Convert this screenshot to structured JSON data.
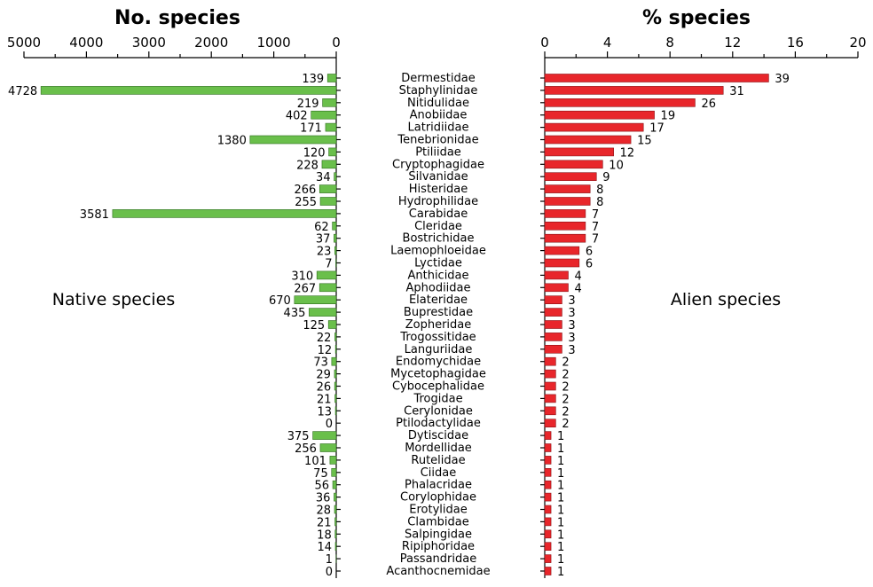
{
  "chart_data": {
    "type": "bar",
    "families": [
      "Dermestidae",
      "Staphylinidae",
      "Nitidulidae",
      "Anobiidae",
      "Latridiidae",
      "Tenebrionidae",
      "Ptiliidae",
      "Cryptophagidae",
      "Silvanidae",
      "Histeridae",
      "Hydrophilidae",
      "Carabidae",
      "Cleridae",
      "Bostrichidae",
      "Laemophloeidae",
      "Lyctidae",
      "Anthicidae",
      "Aphodiidae",
      "Elateridae",
      "Buprestidae",
      "Zopheridae",
      "Trogossitidae",
      "Languriidae",
      "Endomychidae",
      "Mycetophagidae",
      "Cybocephalidae",
      "Trogidae",
      "Cerylonidae",
      "Ptilodactylidae",
      "Dytiscidae",
      "Mordellidae",
      "Rutelidae",
      "Ciidae",
      "Phalacridae",
      "Corylophidae",
      "Erotylidae",
      "Clambidae",
      "Salpingidae",
      "Ripiphoridae",
      "Passandridae",
      "Acanthocnemidae"
    ],
    "native": {
      "title": "No. species",
      "label": "Native species",
      "xlim": [
        5000,
        0
      ],
      "ticks": [
        "5000",
        "4000",
        "3000",
        "2000",
        "1000",
        "0"
      ],
      "color": "#6abf4b",
      "values": [
        139,
        4728,
        219,
        402,
        171,
        1380,
        120,
        228,
        34,
        266,
        255,
        3581,
        62,
        37,
        23,
        7,
        310,
        267,
        670,
        435,
        125,
        22,
        12,
        73,
        29,
        26,
        21,
        13,
        0,
        375,
        256,
        101,
        75,
        56,
        36,
        28,
        21,
        18,
        14,
        1,
        0
      ],
      "labels": [
        "139",
        "4728",
        "219",
        "402",
        "171",
        "1380",
        "120",
        "228",
        "34",
        "266",
        "255",
        "3581",
        "62",
        "37",
        "23",
        "7",
        "310",
        "267",
        "670",
        "435",
        "125",
        "22",
        "12",
        "73",
        "29",
        "26",
        "21",
        "13",
        "0",
        "375",
        "256",
        "101",
        "75",
        "56",
        "36",
        "28",
        "21",
        "18",
        "14",
        "1",
        "0"
      ]
    },
    "alien": {
      "title": "% species",
      "label": "Alien species",
      "xlim": [
        0,
        20
      ],
      "ticks": [
        "0",
        "4",
        "8",
        "12",
        "16",
        "20"
      ],
      "color": "#e8262b",
      "values": [
        14.3,
        11.4,
        9.6,
        7.0,
        6.3,
        5.5,
        4.4,
        3.7,
        3.3,
        2.9,
        2.9,
        2.6,
        2.6,
        2.6,
        2.2,
        2.2,
        1.5,
        1.5,
        1.1,
        1.1,
        1.1,
        1.1,
        1.1,
        0.7,
        0.7,
        0.7,
        0.7,
        0.7,
        0.7,
        0.4,
        0.4,
        0.4,
        0.4,
        0.4,
        0.4,
        0.4,
        0.4,
        0.4,
        0.4,
        0.4,
        0.4
      ],
      "labels": [
        "39",
        "31",
        "26",
        "19",
        "17",
        "15",
        "12",
        "10",
        "9",
        "8",
        "8",
        "7",
        "7",
        "7",
        "6",
        "6",
        "4",
        "4",
        "3",
        "3",
        "3",
        "3",
        "3",
        "2",
        "2",
        "2",
        "2",
        "2",
        "2",
        "1",
        "1",
        "1",
        "1",
        "1",
        "1",
        "1",
        "1",
        "1",
        "1",
        "1",
        "1"
      ]
    }
  }
}
